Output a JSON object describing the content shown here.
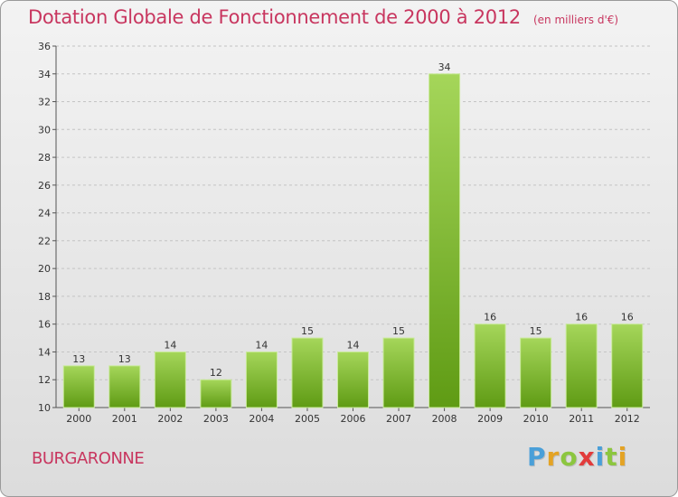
{
  "title": "Dotation Globale de Fonctionnement de 2000 à 2012",
  "title_unit": "(en milliers d'€)",
  "commune": "BURGARONNE",
  "logo": {
    "letters": [
      "P",
      "r",
      "o",
      "x",
      "i",
      "t",
      "i"
    ],
    "colors": [
      "#4a9fd8",
      "#e4a324",
      "#8cc63f",
      "#e23b3b",
      "#4a9fd8",
      "#8cc63f",
      "#e4a324"
    ]
  },
  "colors": {
    "bar_top": "#a5d65a",
    "bar_bottom": "#5f9b14",
    "title": "#c8365f"
  },
  "chart_data": {
    "type": "bar",
    "categories": [
      "2000",
      "2001",
      "2002",
      "2003",
      "2004",
      "2005",
      "2006",
      "2007",
      "2008",
      "2009",
      "2010",
      "2011",
      "2012"
    ],
    "values": [
      13,
      13,
      14,
      12,
      14,
      15,
      14,
      15,
      34,
      16,
      15,
      16,
      16
    ],
    "ylim": [
      10,
      36
    ],
    "yticks": [
      10,
      12,
      14,
      16,
      18,
      20,
      22,
      24,
      26,
      28,
      30,
      32,
      34,
      36
    ],
    "grid": true,
    "xlabel": "",
    "ylabel": ""
  }
}
